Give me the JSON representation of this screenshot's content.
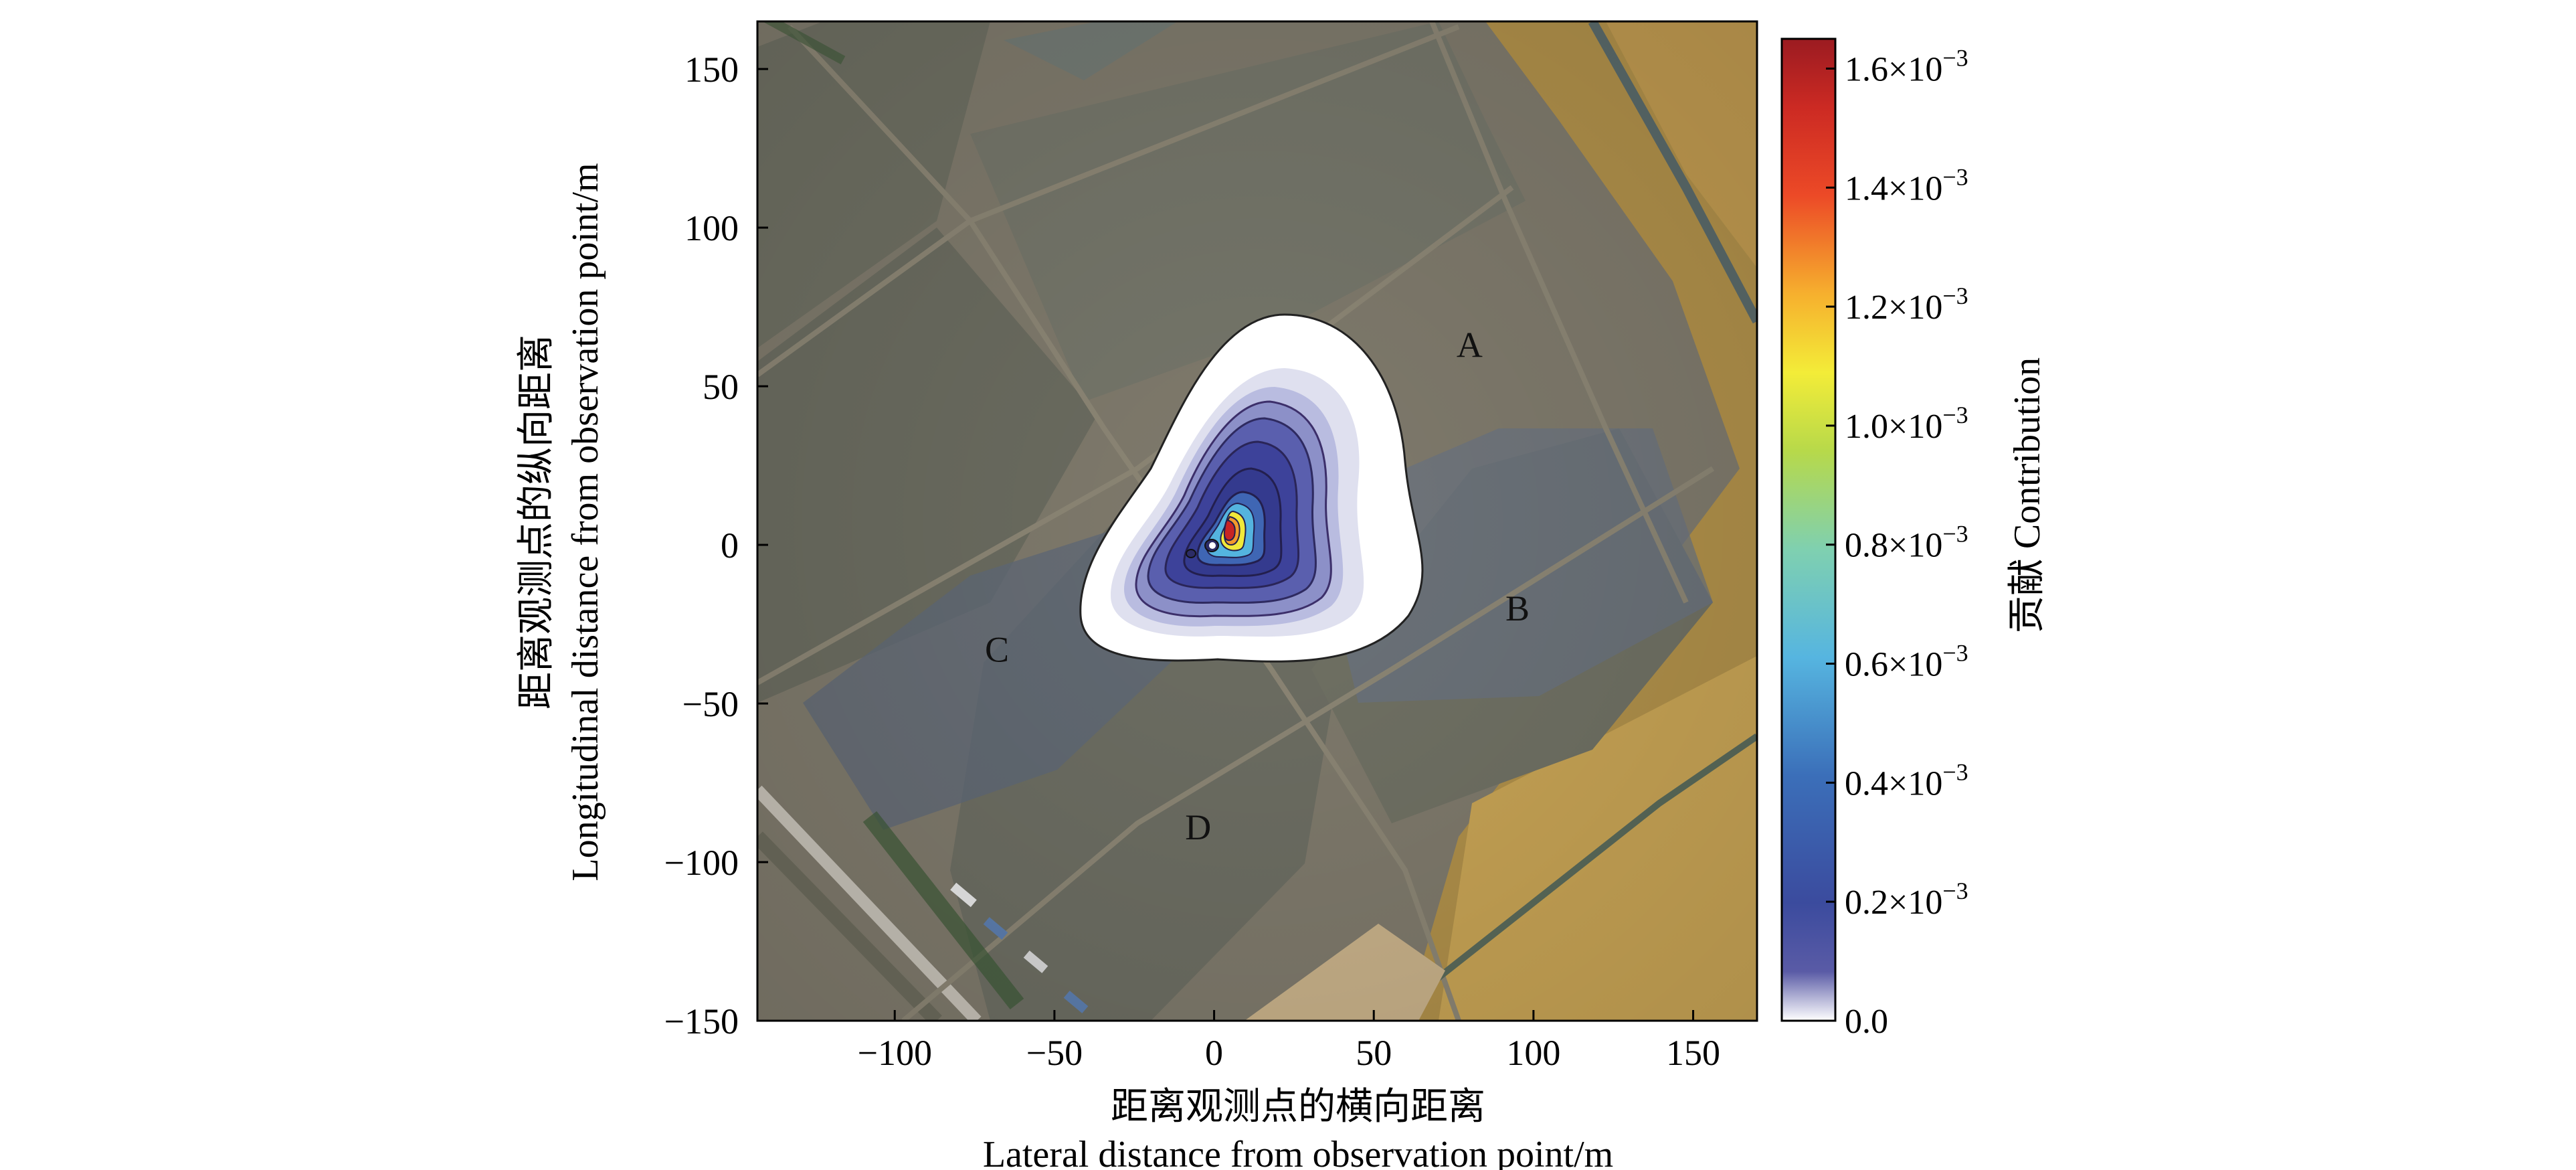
{
  "chart_data": {
    "type": "heatmap",
    "subtype": "footprint-contour-over-aerial-photo",
    "xlabel_cn": "距离观测点的横向距离",
    "xlabel_en": "Lateral distance from observation point/m",
    "ylabel_cn": "距离观测点的纵向距离",
    "ylabel_en": "Longitudinal distance from observation point/m",
    "xlim": [
      -143,
      170
    ],
    "ylim": [
      -150,
      165
    ],
    "x_ticks": [
      -100,
      -50,
      0,
      50,
      100,
      150
    ],
    "y_ticks": [
      -150,
      -100,
      -50,
      0,
      50,
      100,
      150
    ],
    "x_tick_labels": [
      "−100",
      "−50",
      "0",
      "50",
      "100",
      "150"
    ],
    "y_tick_labels": [
      "−150",
      "−100",
      "−50",
      "0",
      "50",
      "100",
      "150"
    ],
    "grid": false,
    "field_labels": [
      {
        "text": "A",
        "x": 80,
        "y": 63
      },
      {
        "text": "B",
        "x": 95,
        "y": -20
      },
      {
        "text": "C",
        "x": -68,
        "y": -33
      },
      {
        "text": "D",
        "x": -5,
        "y": -89
      }
    ],
    "footprint": {
      "peak_value": 0.00165,
      "peak_location": [
        5,
        4
      ],
      "observation_point": [
        0,
        0
      ],
      "outer_extent_x": [
        -40,
        65
      ],
      "outer_extent_y": [
        -37,
        73
      ],
      "contour_levels": [
        2e-05,
        0.0001,
        0.0002,
        0.0003,
        0.0004,
        0.0006,
        0.0008,
        0.001,
        0.0012,
        0.0014
      ]
    },
    "colorbar": {
      "label": "贡献 Contribution",
      "range": [
        0.0,
        0.00165
      ],
      "ticks": [
        0.0,
        0.0002,
        0.0004,
        0.0006,
        0.0008,
        0.001,
        0.0012,
        0.0014,
        0.0016
      ],
      "tick_labels": [
        "0.0",
        "0.2×10",
        "0.4×10",
        "0.6×10",
        "0.8×10",
        "1.0×10",
        "1.2×10",
        "1.4×10",
        "1.6×10"
      ],
      "exponent": "−3",
      "colors": [
        "#ffffff",
        "#3b3e92",
        "#3a56a8",
        "#4a8fd0",
        "#5cc6e6",
        "#8fd07a",
        "#f2ee3a",
        "#f4a52e",
        "#e83a26",
        "#a51c22"
      ]
    }
  }
}
